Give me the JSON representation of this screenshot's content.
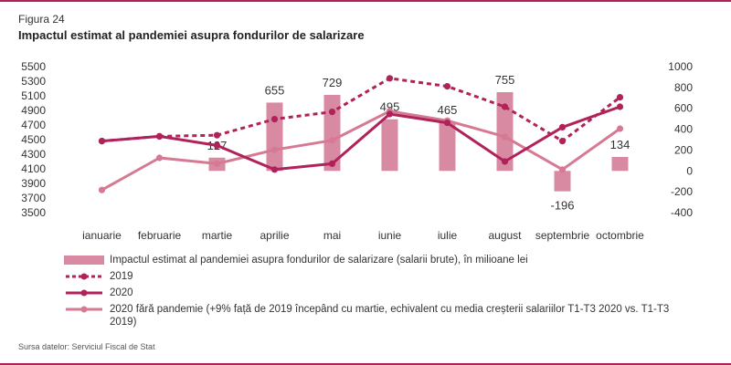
{
  "figure": {
    "label": "Figura 24",
    "title": "Impactul estimat al pandemiei asupra fondurilor de salarizare",
    "source": "Sursa datelor: Serviciul Fiscal de Stat"
  },
  "colors": {
    "bar": "#d98aa3",
    "s2019": "#b0225a",
    "s2020": "#b0225a",
    "s2020fp": "#d67a93",
    "frame": "#b0225a"
  },
  "chart_data": {
    "type": "bar+line",
    "title": "Impactul estimat al pandemiei asupra fondurilor de salarizare",
    "categories": [
      "ianuarie",
      "februarie",
      "martie",
      "aprilie",
      "mai",
      "iunie",
      "iulie",
      "august",
      "septembrie",
      "octombrie"
    ],
    "left_axis": {
      "min": 3500,
      "max": 5500,
      "ticks": [
        "5500",
        "5300",
        "5100",
        "4900",
        "4700",
        "4500",
        "4300",
        "4100",
        "3900",
        "3700",
        "3500"
      ]
    },
    "right_axis": {
      "min": -400,
      "max": 1000,
      "ticks": [
        "1000",
        "800",
        "600",
        "400",
        "200",
        "0",
        "-200",
        "-400"
      ]
    },
    "bars": {
      "name": "Impactul estimat al pandemiei asupra fondurilor de salarizare (salarii brute), în milioane lei",
      "values": [
        null,
        null,
        127,
        655,
        729,
        495,
        465,
        755,
        -196,
        134
      ],
      "labels": [
        "",
        "",
        "127",
        "655",
        "729",
        "495",
        "465",
        "755",
        "-196",
        "134"
      ]
    },
    "series": [
      {
        "name": "2019",
        "style": "dashed",
        "values": [
          4480,
          4545,
          4560,
          4780,
          4880,
          5340,
          5230,
          4950,
          4480,
          5080
        ]
      },
      {
        "name": "2020",
        "style": "solid",
        "values": [
          4480,
          4545,
          4420,
          4090,
          4170,
          4850,
          4730,
          4200,
          4670,
          4950
        ]
      },
      {
        "name": "2020 fără pandemie (+9% față de 2019 începând cu martie, echivalent cu media creșterii salariilor T1-T3 2020 vs. T1-T3 2019)",
        "style": "solid-light",
        "values": [
          3810,
          4250,
          4170,
          4360,
          4490,
          4890,
          4760,
          4540,
          4090,
          4650
        ]
      }
    ]
  },
  "legend": {
    "bars_label": "Impactul estimat al pandemiei asupra fondurilor de salarizare (salarii brute), în milioane lei",
    "s2019_label": "2019",
    "s2020_label": "2020",
    "s2020fp_label": "2020 fără pandemie (+9% față de 2019 începând cu martie, echivalent cu media creșterii salariilor T1-T3 2020 vs. T1-T3 2019)"
  }
}
